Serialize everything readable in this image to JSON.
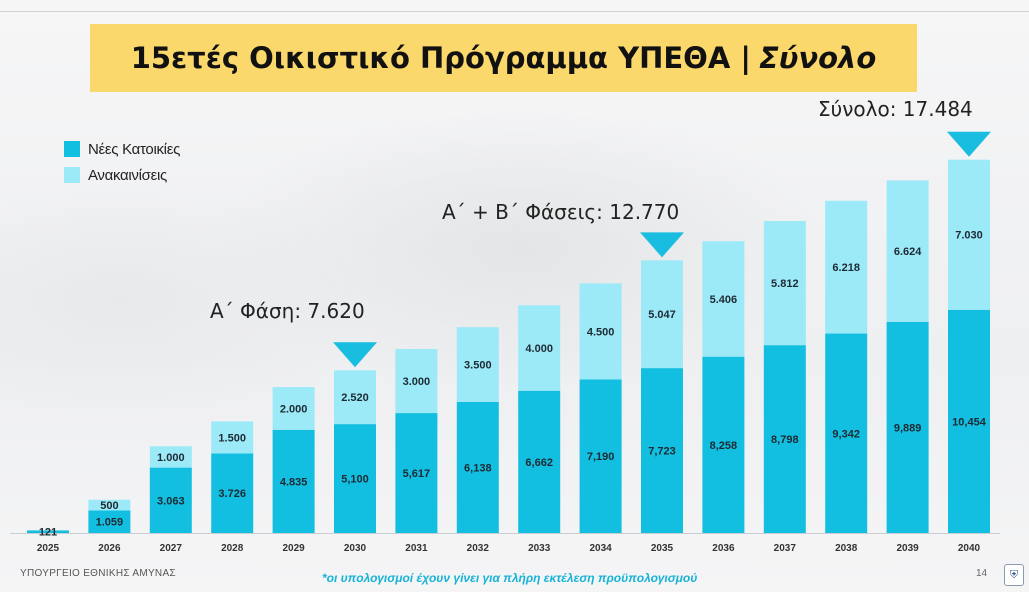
{
  "title": {
    "main": "15ετές Οικιστικό Πρόγραμμα ΥΠΕΘΑ |",
    "sub": "Σύνολο"
  },
  "colors": {
    "new": "#12bfe0",
    "renov": "#9ce9f8",
    "title_bg": "#fbd86b",
    "marker": "#19bde0"
  },
  "legend": [
    {
      "label": "Νέες Κατοικίες",
      "color": "#12bfe0"
    },
    {
      "label": "Ανακαινίσεις",
      "color": "#9ce9f8"
    }
  ],
  "callouts": {
    "phase_a": "Α΄ Φάση: 7.620",
    "phase_ab": "Α΄ + Β΄ Φάσεις: 12.770",
    "total": "Σύνολο: 17.484"
  },
  "footer": {
    "ministry": "ΥΠΟΥΡΓΕΙΟ ΕΘΝΙΚΗΣ ΑΜΥΝΑΣ",
    "note": "*οι υπολογισμοί έχουν γίνει για πλήρη εκτέλεση προϋπολογισμού",
    "page": "14"
  },
  "chart_data": {
    "type": "bar",
    "stacked": true,
    "categories": [
      "2025",
      "2026",
      "2027",
      "2028",
      "2029",
      "2030",
      "2031",
      "2032",
      "2033",
      "2034",
      "2035",
      "2036",
      "2037",
      "2038",
      "2039",
      "2040"
    ],
    "series": [
      {
        "name": "Νέες Κατοικίες",
        "values": [
          121,
          1059,
          3063,
          3726,
          4835,
          5100,
          5617,
          6138,
          6662,
          7190,
          7723,
          8258,
          8798,
          9342,
          9889,
          10454
        ],
        "labels": [
          "121",
          "1.059",
          "3.063",
          "3.726",
          "4.835",
          "5,100",
          "5,617",
          "6,138",
          "6,662",
          "7,190",
          "7,723",
          "8,258",
          "8,798",
          "9,342",
          "9,889",
          "10,454"
        ]
      },
      {
        "name": "Ανακαινίσεις",
        "values": [
          0,
          500,
          1000,
          1500,
          2000,
          2520,
          3000,
          3500,
          4000,
          4500,
          5047,
          5406,
          5812,
          6218,
          6624,
          7030
        ],
        "labels": [
          "",
          "500",
          "1.000",
          "1.500",
          "2.000",
          "2.520",
          "3.000",
          "3.500",
          "4.000",
          "4.500",
          "5.047",
          "5.406",
          "5.812",
          "6.218",
          "6.624",
          "7.030"
        ]
      }
    ],
    "markers": [
      {
        "category": "2030",
        "label": "Α΄ Φάση: 7.620"
      },
      {
        "category": "2035",
        "label": "Α΄ + Β΄ Φάσεις: 12.770"
      },
      {
        "category": "2040",
        "label": "Σύνολο: 17.484"
      }
    ],
    "legend_position": "top-left",
    "grid": false,
    "ylim": [
      0,
      18500
    ]
  }
}
